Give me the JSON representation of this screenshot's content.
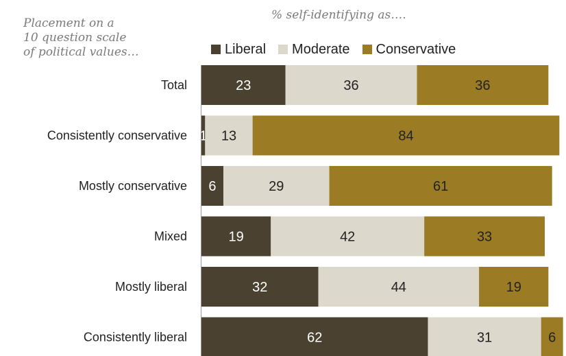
{
  "side_note": [
    "Placement on a",
    "10 question scale",
    "of political values…"
  ],
  "subtitle": "% self-identifying as….",
  "colors": {
    "liberal": "#4a4130",
    "moderate": "#dcd8cb",
    "conservative": "#9b7b24",
    "label_on_dark": "#ffffff",
    "label_on_light": "#222222"
  },
  "chart_data": {
    "type": "bar",
    "orientation": "horizontal",
    "stacked": true,
    "categories": [
      "Total",
      "Consistently conservative",
      "Mostly conservative",
      "Mixed",
      "Mostly liberal",
      "Consistently liberal"
    ],
    "series": [
      {
        "name": "Liberal",
        "values": [
          23,
          1,
          6,
          19,
          32,
          62
        ]
      },
      {
        "name": "Moderate",
        "values": [
          36,
          13,
          29,
          42,
          44,
          31
        ]
      },
      {
        "name": "Conservative",
        "values": [
          36,
          84,
          61,
          33,
          19,
          6
        ]
      }
    ],
    "legend_position": "top",
    "xlim": [
      0,
      100
    ]
  }
}
